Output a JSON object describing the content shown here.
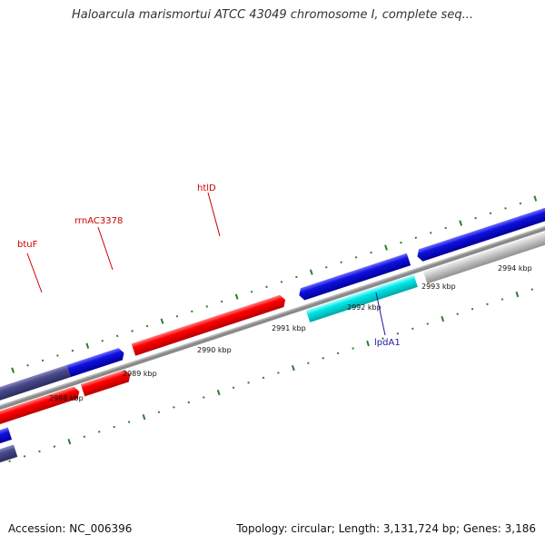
{
  "title": "Haloarcula marismortui ATCC 43049 chromosome I, complete seq...",
  "footer": {
    "accession": "Accession: NC_006396",
    "summary": "Topology: circular; Length: 3,131,724 bp; Genes: 3,186"
  },
  "colors": {
    "backbone": "#8a8a8a",
    "tick": "#2d7d2d",
    "gene_label": "#cc0000",
    "gene_label_alt": "#1a1aa0",
    "red": "#ff0000",
    "blue": "#1010e0",
    "slate": "#4a4a8c",
    "cyan": "#00e8e8",
    "gray": "#c8c8c8"
  },
  "scale_labels": [
    "2988 kbp",
    "2989 kbp",
    "2990 kbp",
    "2991 kbp",
    "2992 kbp",
    "2993 kbp",
    "2994 kbp"
  ],
  "gene_labels": [
    "btuF",
    "rrnAC3378",
    "htlD",
    "lpdA1"
  ]
}
